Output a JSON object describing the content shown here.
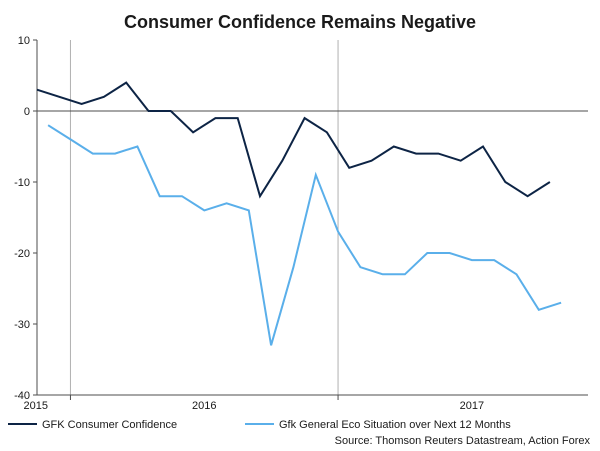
{
  "chart_data": {
    "type": "line",
    "title": "Consumer Confidence Remains Negative",
    "xlabel": "",
    "ylabel": "",
    "ylim": [
      -40,
      10
    ],
    "yticks": [
      10,
      0,
      -10,
      -20,
      -30,
      -40
    ],
    "year_labels": [
      "2015",
      "2016",
      "2017"
    ],
    "x_periods": [
      "2014-11",
      "2014-12",
      "2015-01",
      "2015-02",
      "2015-03",
      "2015-04",
      "2015-05",
      "2015-06",
      "2015-07",
      "2015-08",
      "2015-09",
      "2015-10",
      "2015-11",
      "2015-12",
      "2016-01",
      "2016-02",
      "2016-03",
      "2016-04",
      "2016-05",
      "2016-06",
      "2016-07",
      "2016-08",
      "2016-09",
      "2016-10",
      "2016-11",
      "2016-12",
      "2017-01",
      "2017-02",
      "2017-03",
      "2017-04",
      "2017-05",
      "2017-06",
      "2017-07",
      "2017-08",
      "2017-09",
      "2017-10",
      "2017-11",
      "2017-12"
    ],
    "series": [
      {
        "name": "GFK Consumer Confidence",
        "color": "#0d2445",
        "values": [
          3,
          null,
          1,
          2,
          4,
          0,
          0,
          -3,
          -1,
          -1,
          -12,
          -7,
          -1,
          -3,
          -8,
          -7,
          -5,
          -6,
          -6,
          -7,
          -5,
          -10,
          -12,
          -10
        ]
      },
      {
        "name": "Gfk General Eco Situation over Next 12 Months",
        "color": "#5aafea",
        "values": [
          -2,
          -4,
          -6,
          -6,
          -5,
          -12,
          -12,
          -14,
          -13,
          -14,
          -33,
          -22,
          -9,
          -17,
          -22,
          -23,
          -23,
          -20,
          -20,
          -21,
          -21,
          -23,
          -28,
          -27
        ]
      }
    ],
    "legend_position": "bottom",
    "source": "Source: Thomson Reuters Datastream, Action Forex"
  },
  "colors": {
    "axis": "#4d4d4d",
    "zero_line": "#4d4d4d",
    "year_divider": "#b0b0b0"
  }
}
